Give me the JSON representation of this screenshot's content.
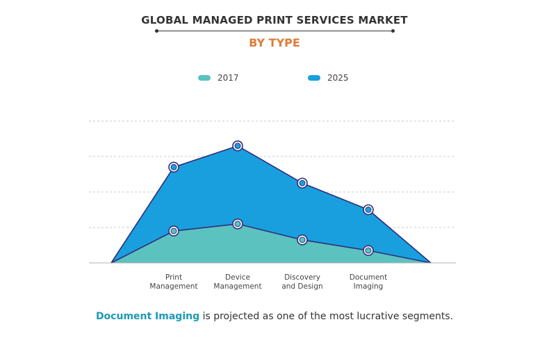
{
  "title": "GLOBAL MANAGED PRINT SERVICES MARKET",
  "subtitle": "BY TYPE",
  "colors": {
    "subtitle": "#e07b39",
    "series_2017_fill": "#5bc2bf",
    "series_2025_fill": "#1a9fde",
    "line": "#2e2f7a",
    "highlight": "#1a9bb5",
    "grid": "#c8c8c8"
  },
  "legend": [
    {
      "label": "2017",
      "color": "#5bc2bf"
    },
    {
      "label": "2025",
      "color": "#1a9fde"
    }
  ],
  "caption": {
    "highlight": "Document Imaging",
    "rest": " is projected as one of the most lucrative segments."
  },
  "chart_data": {
    "type": "area",
    "title": "GLOBAL MANAGED PRINT SERVICES MARKET",
    "subtitle": "BY TYPE",
    "categories": [
      "Print\nManagement",
      "Device\nManagement",
      "Discovery\nand Design",
      "Document\nImaging"
    ],
    "series": [
      {
        "name": "2017",
        "values": [
          0.9,
          1.1,
          0.65,
          0.35
        ]
      },
      {
        "name": "2025",
        "values": [
          2.7,
          3.3,
          2.25,
          1.5
        ]
      }
    ],
    "ylim": [
      0,
      4
    ],
    "grid": true,
    "legend_position": "top-center",
    "y_tick_labels_shown": false
  }
}
